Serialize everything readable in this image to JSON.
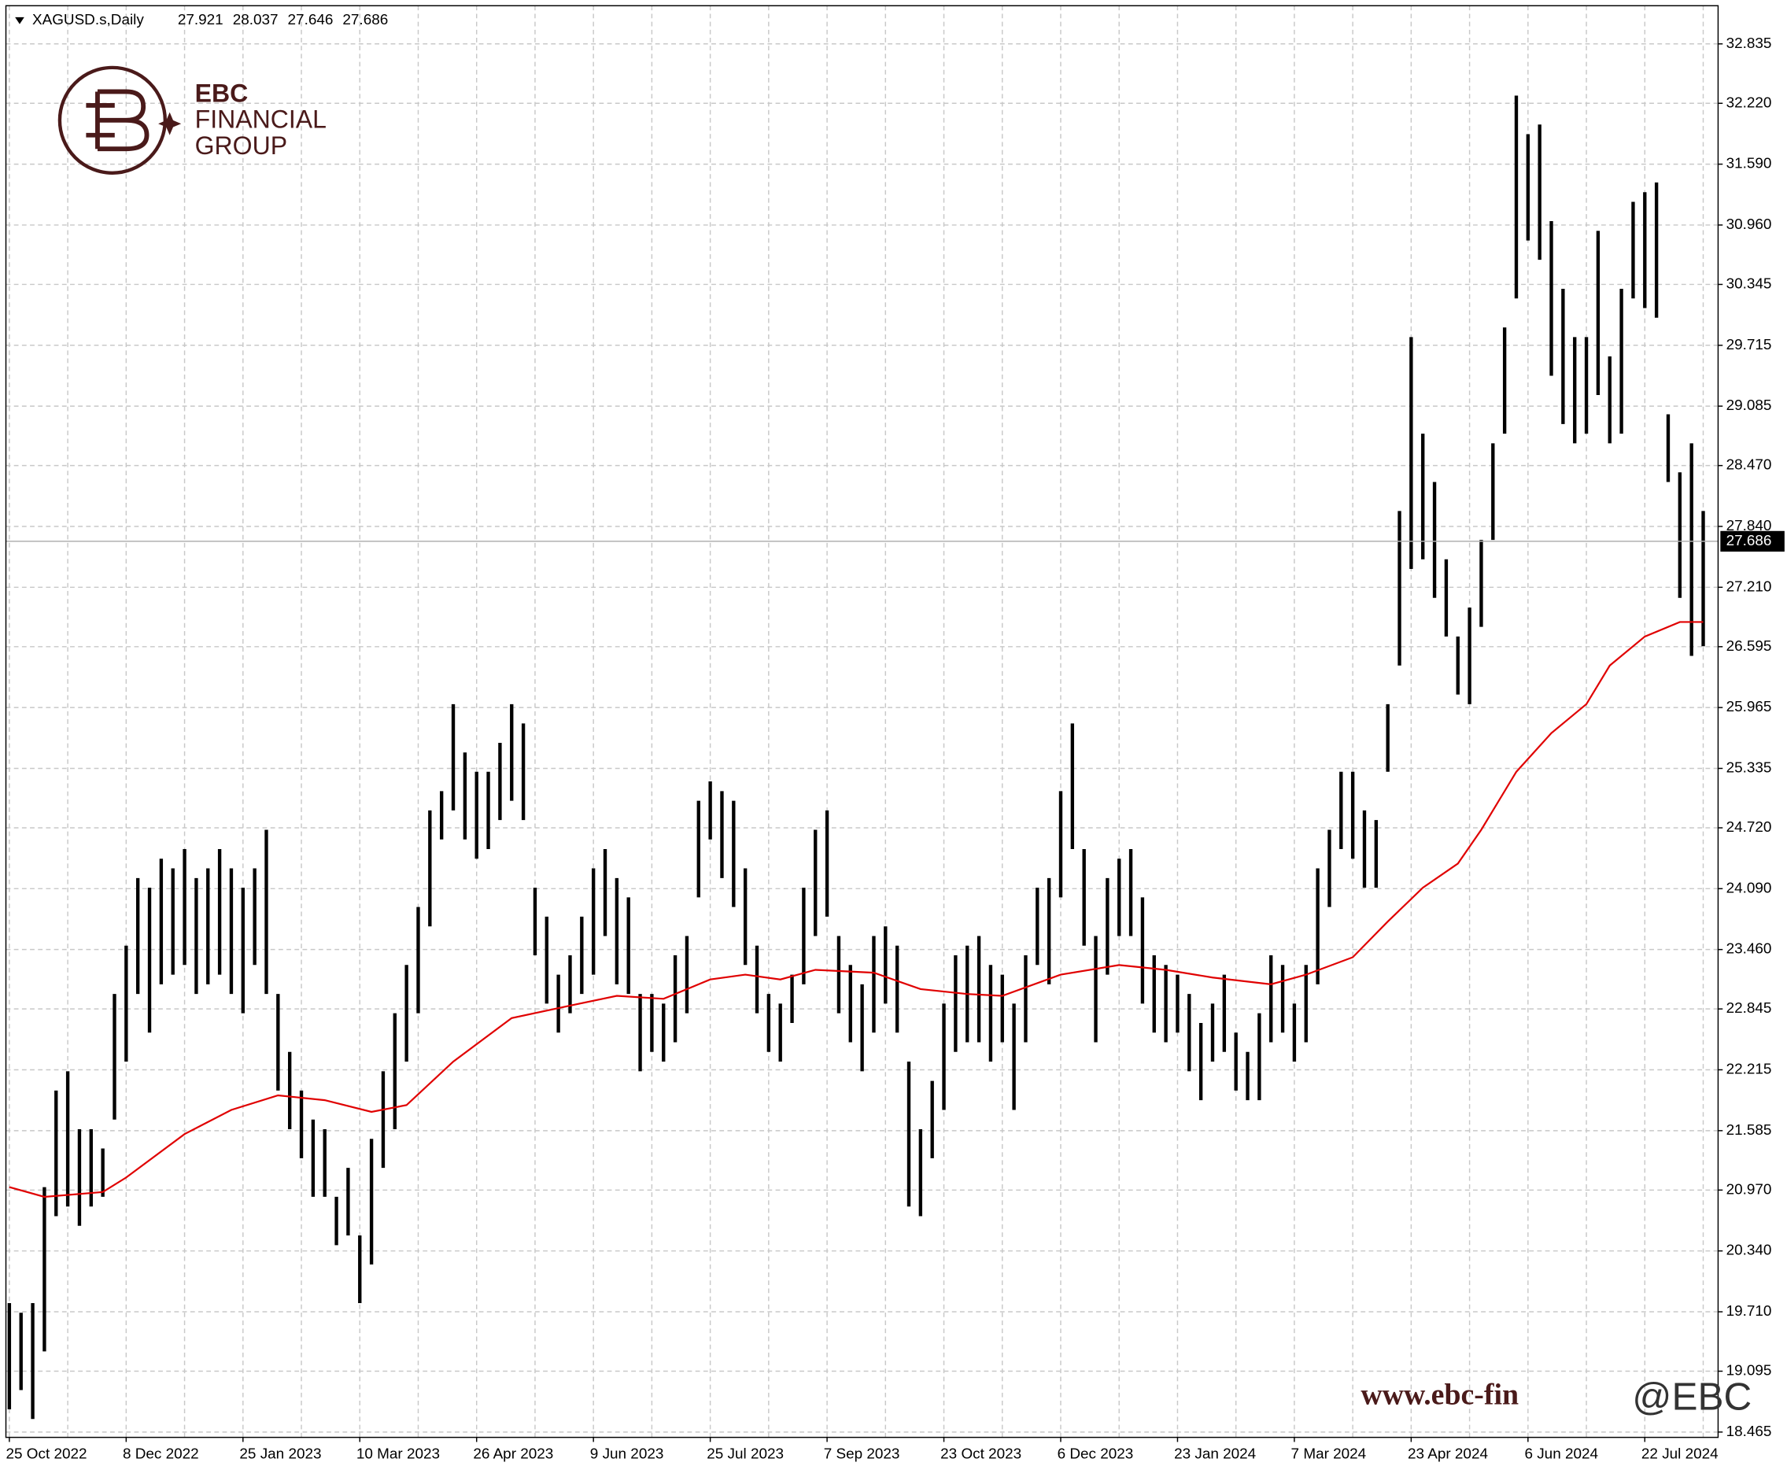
{
  "chart_data": {
    "type": "ohlc",
    "header": {
      "symbol": "XAGUSD.s,Daily",
      "values": [
        27.921,
        28.037,
        27.646,
        27.686
      ]
    },
    "categories": [
      "25 Oct 2022",
      null,
      null,
      null,
      null,
      null,
      null,
      null,
      null,
      null,
      "8 Dec 2022",
      null,
      null,
      null,
      null,
      null,
      null,
      null,
      null,
      null,
      "25 Jan 2023",
      null,
      null,
      null,
      null,
      null,
      null,
      null,
      null,
      null,
      "10 Mar 2023",
      null,
      null,
      null,
      null,
      null,
      null,
      null,
      null,
      null,
      "26 Apr 2023",
      null,
      null,
      null,
      null,
      null,
      null,
      null,
      null,
      null,
      "9 Jun 2023",
      null,
      null,
      null,
      null,
      null,
      null,
      null,
      null,
      null,
      "25 Jul 2023",
      null,
      null,
      null,
      null,
      null,
      null,
      null,
      null,
      null,
      "7 Sep 2023",
      null,
      null,
      null,
      null,
      null,
      null,
      null,
      null,
      null,
      "23 Oct 2023",
      null,
      null,
      null,
      null,
      null,
      null,
      null,
      null,
      null,
      "6 Dec 2023",
      null,
      null,
      null,
      null,
      null,
      null,
      null,
      null,
      null,
      "23 Jan 2024",
      null,
      null,
      null,
      null,
      null,
      null,
      null,
      null,
      null,
      "7 Mar 2024",
      null,
      null,
      null,
      null,
      null,
      null,
      null,
      null,
      null,
      "23 Apr 2024",
      null,
      null,
      null,
      null,
      null,
      null,
      null,
      null,
      null,
      "6 Jun 2024",
      null,
      null,
      null,
      null,
      null,
      null,
      null,
      null,
      null,
      "22 Jul 2024",
      null,
      null,
      null,
      null,
      null
    ],
    "high": [
      19.8,
      19.7,
      19.8,
      21.0,
      22.0,
      22.2,
      21.6,
      21.6,
      21.4,
      23.0,
      23.5,
      24.2,
      24.1,
      24.4,
      24.3,
      24.5,
      24.2,
      24.3,
      24.5,
      24.3,
      24.1,
      24.3,
      24.7,
      23.0,
      22.4,
      22.0,
      21.7,
      21.6,
      20.9,
      21.2,
      20.5,
      21.5,
      22.2,
      22.8,
      23.3,
      23.9,
      24.9,
      25.1,
      26.0,
      25.5,
      25.3,
      25.3,
      25.6,
      26.0,
      25.8,
      24.1,
      23.8,
      23.2,
      23.4,
      23.8,
      24.3,
      24.5,
      24.2,
      24.0,
      23.0,
      23.0,
      22.9,
      23.4,
      23.6,
      25.0,
      25.2,
      25.1,
      25.0,
      24.3,
      23.5,
      23.0,
      22.9,
      23.2,
      24.1,
      24.7,
      24.9,
      23.6,
      23.3,
      23.1,
      23.6,
      23.7,
      23.5,
      22.3,
      21.6,
      22.1,
      22.9,
      23.4,
      23.5,
      23.6,
      23.3,
      23.2,
      22.9,
      23.4,
      24.1,
      24.2,
      25.1,
      25.8,
      24.5,
      23.6,
      24.2,
      24.4,
      24.5,
      24.0,
      23.4,
      23.3,
      23.2,
      23.0,
      22.7,
      22.9,
      23.2,
      22.6,
      22.4,
      22.8,
      23.4,
      23.3,
      22.9,
      23.3,
      24.3,
      24.7,
      25.3,
      25.3,
      24.9,
      24.8,
      26.0,
      28.0,
      29.8,
      28.8,
      28.3,
      27.5,
      26.7,
      27.0,
      27.7,
      28.7,
      29.9,
      32.3,
      31.9,
      32.0,
      31.0,
      30.3,
      29.8,
      29.8,
      30.9,
      29.6,
      30.3,
      31.2,
      31.3,
      31.4,
      29.0,
      28.4,
      28.7,
      28.0
    ],
    "low": [
      18.7,
      18.9,
      18.6,
      19.3,
      20.7,
      20.8,
      20.6,
      20.8,
      20.9,
      21.7,
      22.3,
      23.0,
      22.6,
      23.1,
      23.2,
      23.3,
      23.0,
      23.1,
      23.2,
      23.0,
      22.8,
      23.3,
      23.0,
      22.0,
      21.6,
      21.3,
      20.9,
      20.9,
      20.4,
      20.5,
      19.8,
      20.2,
      21.2,
      21.6,
      22.3,
      22.8,
      23.7,
      24.6,
      24.9,
      24.6,
      24.4,
      24.5,
      24.8,
      25.0,
      24.8,
      23.4,
      22.9,
      22.6,
      22.8,
      23.0,
      23.2,
      23.6,
      23.1,
      23.0,
      22.2,
      22.4,
      22.3,
      22.5,
      22.8,
      24.0,
      24.6,
      24.2,
      23.9,
      23.3,
      22.8,
      22.4,
      22.3,
      22.7,
      23.1,
      23.6,
      23.8,
      22.8,
      22.5,
      22.2,
      22.6,
      22.9,
      22.6,
      20.8,
      20.7,
      21.3,
      21.8,
      22.4,
      22.5,
      22.5,
      22.3,
      22.5,
      21.8,
      22.5,
      23.3,
      23.1,
      24.0,
      24.5,
      23.5,
      22.5,
      23.2,
      23.6,
      23.6,
      22.9,
      22.6,
      22.5,
      22.6,
      22.2,
      21.9,
      22.3,
      22.4,
      22.0,
      21.9,
      21.9,
      22.5,
      22.6,
      22.3,
      22.5,
      23.1,
      23.9,
      24.5,
      24.4,
      24.1,
      24.1,
      25.3,
      26.4,
      27.4,
      27.5,
      27.1,
      26.7,
      26.1,
      26.0,
      26.8,
      27.7,
      28.8,
      30.2,
      30.8,
      30.6,
      29.4,
      28.9,
      28.7,
      28.8,
      29.2,
      28.7,
      28.8,
      30.2,
      30.1,
      30.0,
      28.3,
      27.1,
      26.5,
      26.6
    ],
    "bar_color": "#000000",
    "ma": {
      "color": "#e00000",
      "x": [
        0,
        3,
        8,
        10,
        15,
        19,
        23,
        27,
        31,
        34,
        38,
        43,
        48,
        52,
        56,
        60,
        63,
        66,
        69,
        74,
        78,
        82,
        85,
        90,
        95,
        99,
        103,
        108,
        111,
        115,
        118,
        121,
        124,
        126,
        129,
        132,
        135,
        137,
        140,
        143,
        145
      ],
      "values": [
        21.0,
        20.9,
        20.95,
        21.1,
        21.55,
        21.8,
        21.95,
        21.9,
        21.78,
        21.85,
        22.3,
        22.75,
        22.88,
        22.98,
        22.95,
        23.15,
        23.2,
        23.15,
        23.25,
        23.22,
        23.05,
        23.0,
        22.98,
        23.2,
        23.3,
        23.25,
        23.17,
        23.1,
        23.2,
        23.38,
        23.75,
        24.1,
        24.35,
        24.7,
        25.3,
        25.7,
        26.0,
        26.4,
        26.7,
        26.85,
        26.85
      ]
    },
    "last_price": 27.686,
    "ylim": [
      18.41,
      33.23
    ],
    "yticks": [
      32.835,
      {
        "value": 32.22,
        "label": "32.220"
      },
      {
        "value": 31.59,
        "label": "31.590"
      },
      {
        "value": 30.96,
        "label": "30.960"
      },
      30.345,
      29.715,
      29.085,
      {
        "value": 28.47,
        "label": "28.470"
      },
      {
        "value": 27.84,
        "label": "27.840"
      },
      {
        "value": 27.21,
        "label": "27.210"
      },
      26.595,
      25.965,
      25.335,
      {
        "value": 24.72,
        "label": "24.720"
      },
      {
        "value": 24.09,
        "label": "24.090"
      },
      {
        "value": 23.46,
        "label": "23.460"
      },
      22.845,
      22.215,
      21.585,
      {
        "value": 20.97,
        "label": "20.970"
      },
      {
        "value": 20.34,
        "label": "20.340"
      },
      {
        "value": 19.71,
        "label": "19.710"
      },
      19.095,
      18.465
    ],
    "grid": true
  },
  "logo": {
    "line1": "EBC",
    "line2": "FINANCIAL",
    "line3": "GROUP"
  },
  "watermark": {
    "url": "www.ebc-fin",
    "handle": "@EBC"
  }
}
